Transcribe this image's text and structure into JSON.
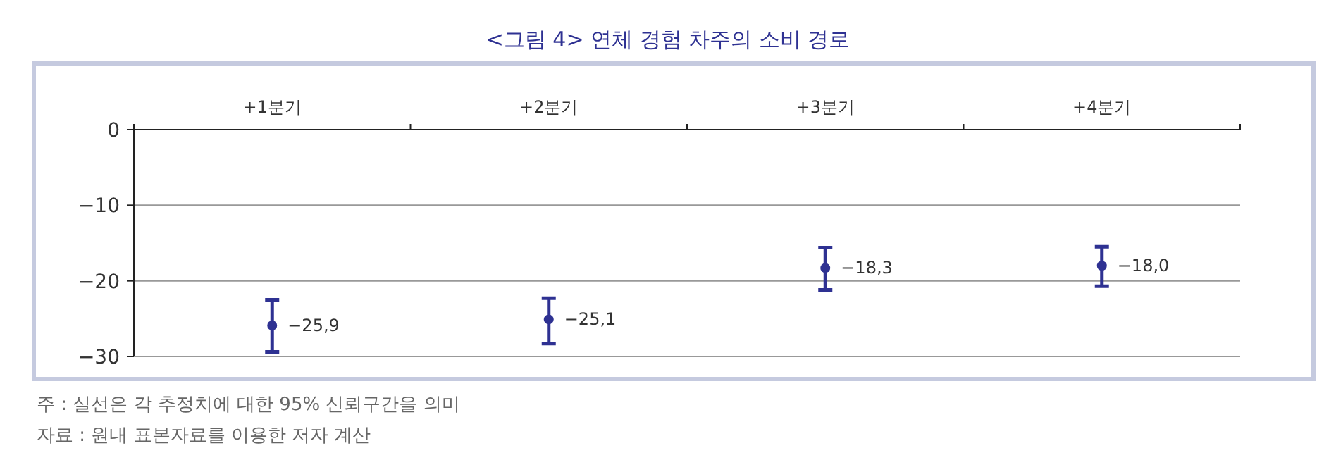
{
  "chart_data": {
    "type": "scatter",
    "title": "<그림 4> 연체 경험 차주의 소비 경로",
    "categories": [
      "+1분기",
      "+2분기",
      "+3분기",
      "+4분기"
    ],
    "values": [
      -25.9,
      -25.1,
      -18.3,
      -18.0
    ],
    "errors": [
      [
        -29.4,
        -22.5
      ],
      [
        -28.3,
        -22.3
      ],
      [
        -21.2,
        -15.6
      ],
      [
        -20.7,
        -15.5
      ]
    ],
    "value_labels": [
      "−25,9",
      "−25,1",
      "−18,3",
      "−18,0"
    ],
    "color": "#2e3192",
    "marker": "circle",
    "grid": "y",
    "ylim": [
      -30,
      0
    ],
    "yticks": [
      0,
      -10,
      -20,
      -30
    ],
    "annotations": [
      "주 : 실선은 각 추정치에 대한 95% 신뢰구간을 의미",
      "자료 : 원내 표본자료를 이용한 저자 계산"
    ]
  }
}
